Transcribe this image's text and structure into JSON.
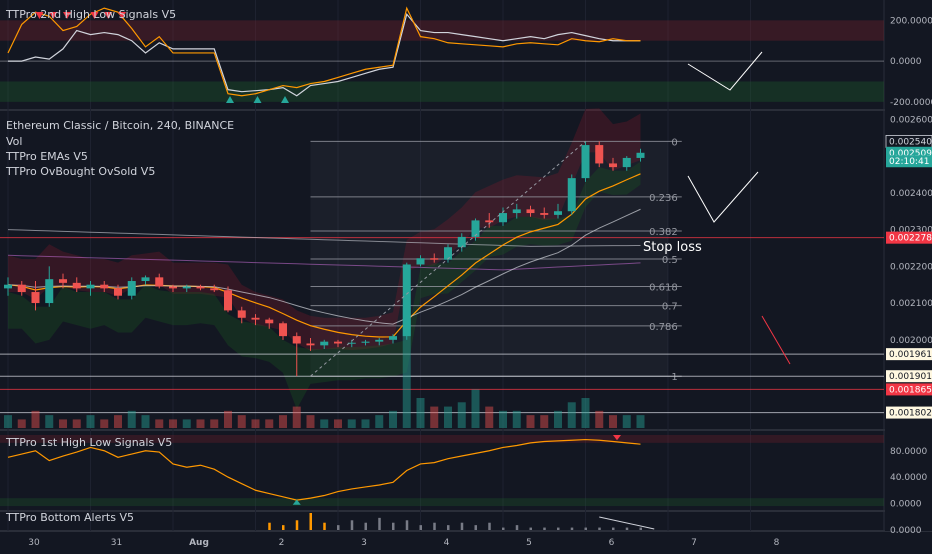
{
  "chart_data": {
    "type": "candlestick",
    "title": "Ethereum Classic / Bitcoin, 240, BINANCE",
    "symbol": "Ethereum Classic / Bitcoin",
    "interval": "240",
    "exchange": "BINANCE",
    "indicator_labels": [
      "Vol",
      "TTPro EMAs V5",
      "TTPro OvBought OvSold V5"
    ],
    "price_axis": {
      "range": [
        0.00176,
        0.00262
      ],
      "ticks": [
        "0.002600",
        "0.002400",
        "0.002300",
        "0.002200",
        "0.002100",
        "0.002000"
      ]
    },
    "price_tags": [
      {
        "value": "0.002540",
        "kind": "fib-0"
      },
      {
        "value": "0.002509",
        "kind": "last"
      },
      {
        "value": "02:10:41",
        "kind": "countdown"
      },
      {
        "value": "0.002278",
        "kind": "stop"
      },
      {
        "value": "0.001961",
        "kind": "level"
      },
      {
        "value": "0.001901",
        "kind": "fib-1"
      },
      {
        "value": "0.001865",
        "kind": "red"
      },
      {
        "value": "0.001802",
        "kind": "level"
      }
    ],
    "fib_levels": [
      {
        "label": "0",
        "price": 0.00254
      },
      {
        "label": "0.236",
        "price": 0.002389
      },
      {
        "label": "0.382",
        "price": 0.002296
      },
      {
        "label": "0.5",
        "price": 0.00222
      },
      {
        "label": "0.618",
        "price": 0.002145
      },
      {
        "label": "0.7",
        "price": 0.002093
      },
      {
        "label": "0.786",
        "price": 0.002038
      },
      {
        "label": "1",
        "price": 0.001901
      }
    ],
    "annotation": "Stop loss",
    "time_axis": {
      "ticks": [
        "30",
        "31",
        "Aug",
        "2",
        "3",
        "4",
        "5",
        "6",
        "7",
        "8"
      ],
      "tick_index": [
        0,
        6,
        12,
        18,
        24,
        30,
        36,
        42,
        48,
        54
      ]
    },
    "candles": [
      {
        "o": 0.00214,
        "h": 0.00217,
        "l": 0.00212,
        "c": 0.00215
      },
      {
        "o": 0.00215,
        "h": 0.00216,
        "l": 0.00212,
        "c": 0.00213
      },
      {
        "o": 0.00213,
        "h": 0.00216,
        "l": 0.00208,
        "c": 0.0021
      },
      {
        "o": 0.0021,
        "h": 0.0022,
        "l": 0.00209,
        "c": 0.002165
      },
      {
        "o": 0.002165,
        "h": 0.00218,
        "l": 0.00214,
        "c": 0.002155
      },
      {
        "o": 0.002155,
        "h": 0.00217,
        "l": 0.00213,
        "c": 0.00214
      },
      {
        "o": 0.00214,
        "h": 0.00216,
        "l": 0.00212,
        "c": 0.00215
      },
      {
        "o": 0.00215,
        "h": 0.00216,
        "l": 0.00213,
        "c": 0.00214
      },
      {
        "o": 0.00214,
        "h": 0.00215,
        "l": 0.00211,
        "c": 0.00212
      },
      {
        "o": 0.00212,
        "h": 0.00217,
        "l": 0.00211,
        "c": 0.00216
      },
      {
        "o": 0.00216,
        "h": 0.002175,
        "l": 0.00215,
        "c": 0.00217
      },
      {
        "o": 0.00217,
        "h": 0.00218,
        "l": 0.00214,
        "c": 0.002145
      },
      {
        "o": 0.002145,
        "h": 0.00215,
        "l": 0.00213,
        "c": 0.00214
      },
      {
        "o": 0.00214,
        "h": 0.00215,
        "l": 0.00213,
        "c": 0.002145
      },
      {
        "o": 0.002145,
        "h": 0.00215,
        "l": 0.002135,
        "c": 0.00214
      },
      {
        "o": 0.00214,
        "h": 0.00215,
        "l": 0.00213,
        "c": 0.002135
      },
      {
        "o": 0.002135,
        "h": 0.002145,
        "l": 0.002075,
        "c": 0.00208
      },
      {
        "o": 0.00208,
        "h": 0.00209,
        "l": 0.002045,
        "c": 0.00206
      },
      {
        "o": 0.00206,
        "h": 0.00207,
        "l": 0.00204,
        "c": 0.002055
      },
      {
        "o": 0.002055,
        "h": 0.00206,
        "l": 0.00203,
        "c": 0.002045
      },
      {
        "o": 0.002045,
        "h": 0.00205,
        "l": 0.002,
        "c": 0.00201
      },
      {
        "o": 0.00201,
        "h": 0.00202,
        "l": 0.001901,
        "c": 0.00199
      },
      {
        "o": 0.00199,
        "h": 0.002005,
        "l": 0.00197,
        "c": 0.001985
      },
      {
        "o": 0.001985,
        "h": 0.002,
        "l": 0.001975,
        "c": 0.001995
      },
      {
        "o": 0.001995,
        "h": 0.002,
        "l": 0.00198,
        "c": 0.00199
      },
      {
        "o": 0.00199,
        "h": 0.002,
        "l": 0.00198,
        "c": 0.001992
      },
      {
        "o": 0.001992,
        "h": 0.002,
        "l": 0.001985,
        "c": 0.001995
      },
      {
        "o": 0.001995,
        "h": 0.002005,
        "l": 0.001985,
        "c": 0.002
      },
      {
        "o": 0.002,
        "h": 0.002015,
        "l": 0.00199,
        "c": 0.00201
      },
      {
        "o": 0.00201,
        "h": 0.00221,
        "l": 0.002,
        "c": 0.002205
      },
      {
        "o": 0.002205,
        "h": 0.00223,
        "l": 0.0022,
        "c": 0.002222
      },
      {
        "o": 0.002222,
        "h": 0.002235,
        "l": 0.00221,
        "c": 0.002218
      },
      {
        "o": 0.002218,
        "h": 0.00226,
        "l": 0.00221,
        "c": 0.002252
      },
      {
        "o": 0.002252,
        "h": 0.00229,
        "l": 0.00224,
        "c": 0.00228
      },
      {
        "o": 0.00228,
        "h": 0.00233,
        "l": 0.00227,
        "c": 0.002325
      },
      {
        "o": 0.002325,
        "h": 0.002345,
        "l": 0.002305,
        "c": 0.00232
      },
      {
        "o": 0.00232,
        "h": 0.00236,
        "l": 0.00231,
        "c": 0.002345
      },
      {
        "o": 0.002345,
        "h": 0.00237,
        "l": 0.00233,
        "c": 0.002355
      },
      {
        "o": 0.002355,
        "h": 0.002365,
        "l": 0.002335,
        "c": 0.002345
      },
      {
        "o": 0.002345,
        "h": 0.00236,
        "l": 0.00233,
        "c": 0.00234
      },
      {
        "o": 0.00234,
        "h": 0.00237,
        "l": 0.00233,
        "c": 0.00235
      },
      {
        "o": 0.00235,
        "h": 0.00245,
        "l": 0.00234,
        "c": 0.00244
      },
      {
        "o": 0.00244,
        "h": 0.00254,
        "l": 0.00243,
        "c": 0.00253
      },
      {
        "o": 0.00253,
        "h": 0.00254,
        "l": 0.00247,
        "c": 0.00248
      },
      {
        "o": 0.00248,
        "h": 0.002495,
        "l": 0.00246,
        "c": 0.00247
      },
      {
        "o": 0.00247,
        "h": 0.0025,
        "l": 0.00246,
        "c": 0.002495
      },
      {
        "o": 0.002495,
        "h": 0.00252,
        "l": 0.002485,
        "c": 0.002509
      }
    ],
    "volume": [
      3,
      2,
      4,
      3,
      2,
      2,
      3,
      2,
      3,
      4,
      3,
      2,
      2,
      2,
      2,
      2,
      4,
      3,
      2,
      2,
      3,
      5,
      3,
      2,
      2,
      2,
      2,
      3,
      4,
      28,
      7,
      5,
      5,
      6,
      9,
      5,
      4,
      4,
      3,
      3,
      4,
      6,
      7,
      4,
      3,
      3,
      3
    ],
    "panes": [
      {
        "id": "osc-2nd",
        "label": "TTPro 2nd High Low Signals V5",
        "range": [
          -230,
          290
        ],
        "ticks": [
          "200.0000",
          "0.0000",
          "-200.0000"
        ],
        "orange": [
          40,
          180,
          240,
          220,
          150,
          170,
          230,
          260,
          240,
          160,
          70,
          120,
          40,
          40,
          40,
          40,
          -160,
          -170,
          -160,
          -140,
          -120,
          -130,
          -110,
          -100,
          -80,
          -60,
          -40,
          -30,
          -20,
          260,
          120,
          110,
          90,
          85,
          80,
          75,
          70,
          85,
          90,
          85,
          80,
          110,
          100,
          95,
          110,
          100,
          100
        ],
        "white": [
          0,
          0,
          20,
          10,
          60,
          150,
          130,
          140,
          130,
          100,
          40,
          90,
          60,
          60,
          60,
          60,
          -140,
          -150,
          -145,
          -140,
          -130,
          -170,
          -120,
          -110,
          -100,
          -80,
          -60,
          -40,
          -30,
          230,
          150,
          140,
          140,
          130,
          120,
          110,
          100,
          110,
          120,
          110,
          130,
          140,
          125,
          110,
          100,
          100,
          100
        ],
        "sell_markers": [
          2,
          3,
          4,
          6,
          7,
          8
        ],
        "buy_markers": [
          16,
          18,
          20
        ]
      },
      {
        "id": "osc-1st",
        "label": "TTPro 1st High Low Signals V5",
        "range": [
          -10,
          110
        ],
        "ticks": [
          "80.0000",
          "40.0000",
          "0.0000"
        ],
        "orange": [
          70,
          75,
          80,
          65,
          72,
          78,
          85,
          80,
          70,
          75,
          80,
          78,
          60,
          55,
          58,
          52,
          40,
          30,
          20,
          15,
          10,
          5,
          8,
          12,
          18,
          22,
          25,
          28,
          32,
          50,
          60,
          62,
          68,
          72,
          76,
          80,
          85,
          88,
          92,
          94,
          95,
          96,
          97,
          96,
          94,
          92,
          90
        ],
        "buy_markers": [
          21
        ],
        "sell_markers": [
          44
        ]
      },
      {
        "id": "bottom-alerts",
        "label": "TTPro Bottom Alerts V5",
        "bars": [
          0,
          0,
          0,
          0,
          0,
          0,
          0,
          0,
          0,
          0,
          0,
          0,
          0,
          0,
          0,
          0,
          0,
          0,
          0,
          3,
          2,
          4,
          7,
          3,
          2,
          4,
          3,
          5,
          3,
          4,
          2,
          3,
          2,
          3,
          2,
          3,
          1,
          2,
          1,
          1,
          1,
          1,
          1,
          1,
          1,
          1,
          1
        ],
        "orange_bars": [
          19,
          20,
          21,
          22,
          23
        ]
      }
    ]
  }
}
